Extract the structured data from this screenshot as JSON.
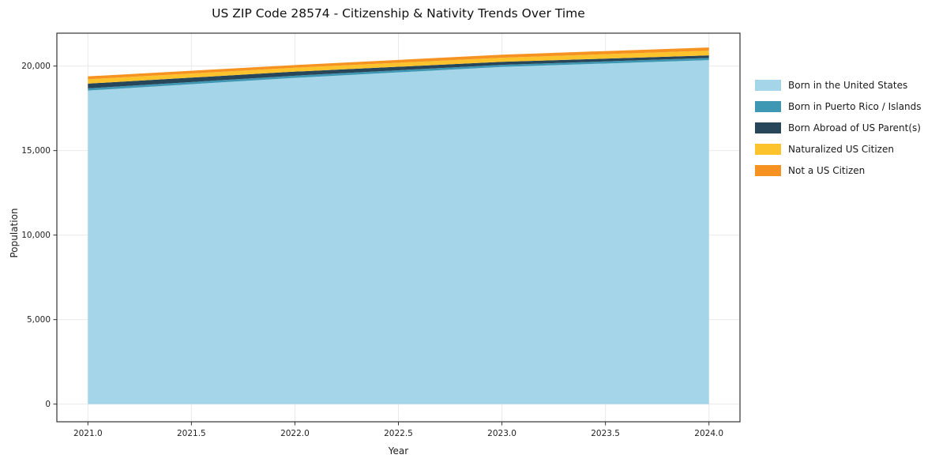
{
  "chart_data": {
    "type": "area",
    "stacked": true,
    "title": "US ZIP Code 28574 - Citizenship & Nativity Trends Over Time",
    "xlabel": "Year",
    "ylabel": "Population",
    "x": [
      2021,
      2022,
      2023,
      2024
    ],
    "series": [
      {
        "name": "Born in the United States",
        "color": "#a5d5e8",
        "values": [
          18550,
          19300,
          19950,
          20350
        ]
      },
      {
        "name": "Born in Puerto Rico / Islands",
        "color": "#3e98b4",
        "values": [
          130,
          130,
          120,
          130
        ]
      },
      {
        "name": "Born Abroad of US Parent(s)",
        "color": "#28465a",
        "values": [
          280,
          240,
          180,
          150
        ]
      },
      {
        "name": "Naturalized US Citizen",
        "color": "#fcc32d",
        "values": [
          260,
          230,
          240,
          280
        ]
      },
      {
        "name": "Not a US Citizen",
        "color": "#f69320",
        "values": [
          170,
          160,
          180,
          190
        ]
      }
    ],
    "xlim": [
      2020.85,
      2024.15
    ],
    "ylim": [
      -1045,
      21945
    ],
    "xticks": {
      "values": [
        2021,
        2021.5,
        2022,
        2022.5,
        2023,
        2023.5,
        2024
      ],
      "labels": [
        "2021.0",
        "2021.5",
        "2022.0",
        "2022.5",
        "2023.0",
        "2023.5",
        "2024.0"
      ]
    },
    "yticks": {
      "values": [
        0,
        5000,
        10000,
        15000,
        20000
      ],
      "labels": [
        "0",
        "5,000",
        "10,000",
        "15,000",
        "20,000"
      ]
    },
    "grid": true,
    "legend_position": "right",
    "colors": {
      "spine": "#333333",
      "grid": "#e9e9e9",
      "tick_label": "#222222"
    }
  }
}
